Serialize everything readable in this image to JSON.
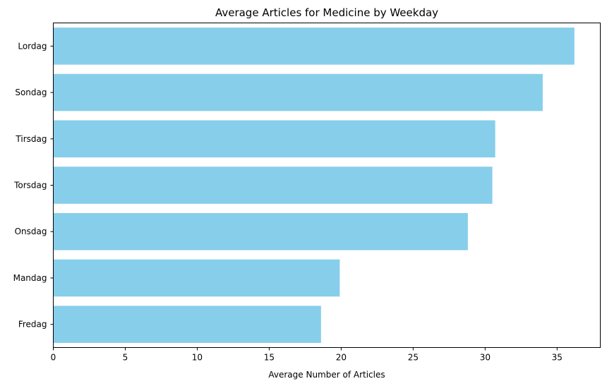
{
  "chart_data": {
    "type": "bar",
    "orientation": "horizontal",
    "title": "Average Articles for Medicine by Weekday",
    "xlabel": "Average Number of Articles",
    "ylabel": "",
    "categories": [
      "Lordag",
      "Sondag",
      "Tirsdag",
      "Torsdag",
      "Onsdag",
      "Mandag",
      "Fredag"
    ],
    "values": [
      36.2,
      34.0,
      30.7,
      30.5,
      28.8,
      19.9,
      18.6
    ],
    "xlim": [
      0,
      38
    ],
    "xticks": [
      0,
      5,
      10,
      15,
      20,
      25,
      30,
      35
    ],
    "bar_color": "#87ceeb",
    "grid": false
  }
}
